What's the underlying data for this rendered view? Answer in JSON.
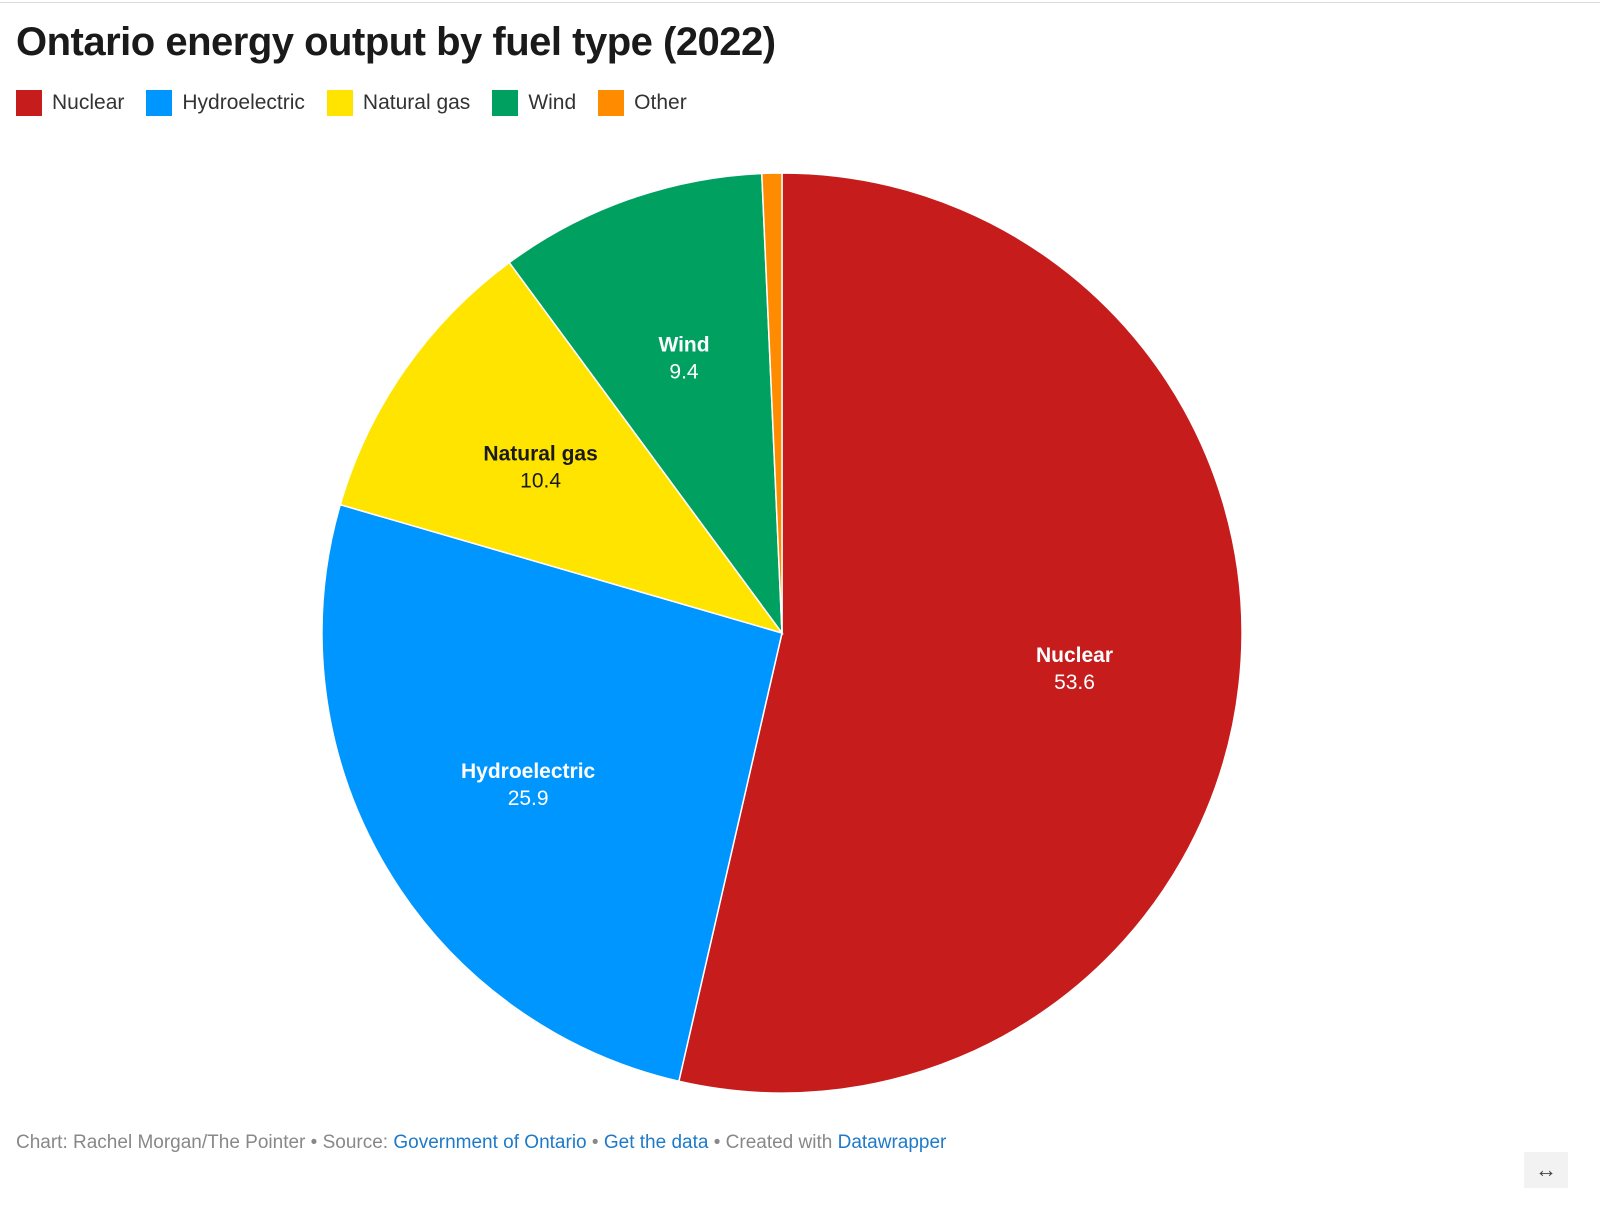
{
  "chart_data": {
    "type": "pie",
    "title": "Ontario energy output by fuel type (2022)",
    "legend_position": "top-left",
    "slices": [
      {
        "name": "Nuclear",
        "value": 53.6,
        "value_label": "53.6",
        "color": "#c61c1c",
        "label_color": "#ffffff"
      },
      {
        "name": "Hydroelectric",
        "value": 25.9,
        "value_label": "25.9",
        "color": "#0096ff",
        "label_color": "#ffffff"
      },
      {
        "name": "Natural gas",
        "value": 10.4,
        "value_label": "10.4",
        "color": "#ffe400",
        "label_color": "#1a1a1a"
      },
      {
        "name": "Wind",
        "value": 9.4,
        "value_label": "9.4",
        "color": "#00a160",
        "label_color": "#ffffff"
      },
      {
        "name": "Other",
        "value": 0.7,
        "value_label": "",
        "color": "#ff8c00",
        "label_color": "#ffffff"
      }
    ]
  },
  "footer": {
    "chart_credit": "Chart: Rachel Morgan/The Pointer",
    "separator": " • ",
    "source_prefix": "Source: ",
    "source_link": "Government of Ontario",
    "data_link": "Get the data",
    "created_prefix": "Created with ",
    "created_link": "Datawrapper"
  },
  "controls": {
    "expand_icon": "↔"
  }
}
